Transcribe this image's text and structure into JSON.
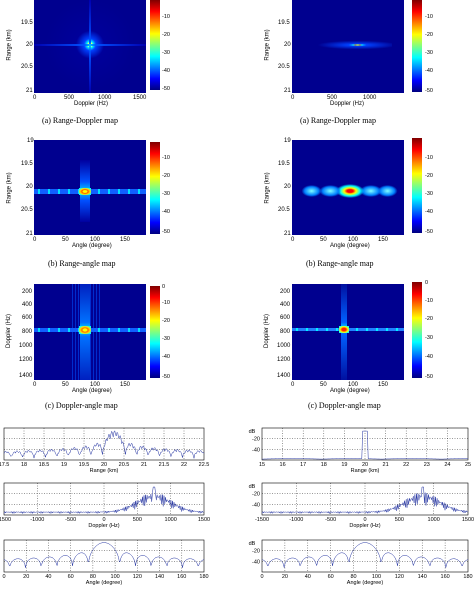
{
  "captions": {
    "a_left": "(a) Range-Doppler map",
    "a_right": "(a) Range-Doppler map",
    "b_left": "(b) Range-angle map",
    "b_right": "(b) Range-angle map",
    "c_left": "(c) Doppler-angle map",
    "c_right": "(c) Doppler-angle map"
  },
  "colorbar_ticks": [
    "0",
    "-10",
    "-20",
    "-30",
    "-40",
    "-50"
  ],
  "maps": {
    "a_left": {
      "xlabel": "Doppler (Hz)",
      "ylabel": "Range (km)",
      "xticks": [
        "0",
        "500",
        "1000",
        "1500"
      ],
      "yticks": [
        "19.5",
        "20",
        "20.5",
        "21"
      ]
    },
    "a_right": {
      "xlabel": "Doppler (Hz)",
      "ylabel": "Range (km)",
      "xticks": [
        "0",
        "500",
        "1000"
      ],
      "yticks": [
        "19.5",
        "20",
        "20.5",
        "21"
      ]
    },
    "b_left": {
      "xlabel": "Angle (degree)",
      "ylabel": "Range (km)",
      "xticks": [
        "0",
        "50",
        "100",
        "150"
      ],
      "yticks": [
        "19",
        "19.5",
        "20",
        "20.5",
        "21"
      ]
    },
    "b_right": {
      "xlabel": "Angle (degree)",
      "ylabel": "Range (km)",
      "xticks": [
        "0",
        "50",
        "100",
        "150"
      ],
      "yticks": [
        "19",
        "19.5",
        "20",
        "20.5",
        "21"
      ]
    },
    "c_left": {
      "xlabel": "Angle (degree)",
      "ylabel": "Doppler (Hz)",
      "xticks": [
        "0",
        "50",
        "100",
        "150"
      ],
      "yticks": [
        "200",
        "400",
        "600",
        "800",
        "1000",
        "1200",
        "1400"
      ]
    },
    "c_right": {
      "xlabel": "Angle (degree)",
      "ylabel": "Doppler (Hz)",
      "xticks": [
        "0",
        "50",
        "100",
        "150"
      ],
      "yticks": [
        "200",
        "400",
        "600",
        "800",
        "1000",
        "1200",
        "1400"
      ]
    }
  },
  "cuts": {
    "range_left": {
      "xlabel": "Range (km)",
      "xticks": [
        "17.5",
        "18",
        "18.5",
        "19",
        "19.5",
        "20",
        "20.5",
        "21",
        "21.5",
        "22",
        "22.5"
      ]
    },
    "doppler_left": {
      "xlabel": "Doppler (Hz)",
      "xticks": [
        "-1500",
        "-1000",
        "-500",
        "0",
        "500",
        "1000",
        "1500"
      ]
    },
    "angle_left": {
      "xlabel": "Angle (degree)",
      "xticks": [
        "0",
        "20",
        "40",
        "60",
        "80",
        "100",
        "120",
        "140",
        "160",
        "180"
      ]
    },
    "range_right": {
      "xlabel": "Range (km)",
      "ylabel": "dB",
      "xticks": [
        "15",
        "16",
        "17",
        "18",
        "19",
        "20",
        "21",
        "22",
        "23",
        "24",
        "25"
      ],
      "yticks": [
        "-20",
        "-40"
      ]
    },
    "doppler_right": {
      "xlabel": "Doppler (Hz)",
      "ylabel": "dB",
      "xticks": [
        "-1500",
        "-1000",
        "-500",
        "0",
        "500",
        "1000",
        "1500"
      ],
      "yticks": [
        "-20",
        "-40"
      ]
    },
    "angle_right": {
      "xlabel": "Angle (degree)",
      "ylabel": "dB",
      "xticks": [
        "0",
        "20",
        "40",
        "60",
        "80",
        "100",
        "120",
        "140",
        "160",
        "180"
      ],
      "yticks": [
        "-20",
        "-40"
      ]
    }
  },
  "colors": {
    "deep_blue": "#00008f",
    "accent_red": "#ff0000",
    "cut_blue": "#2030a0"
  }
}
